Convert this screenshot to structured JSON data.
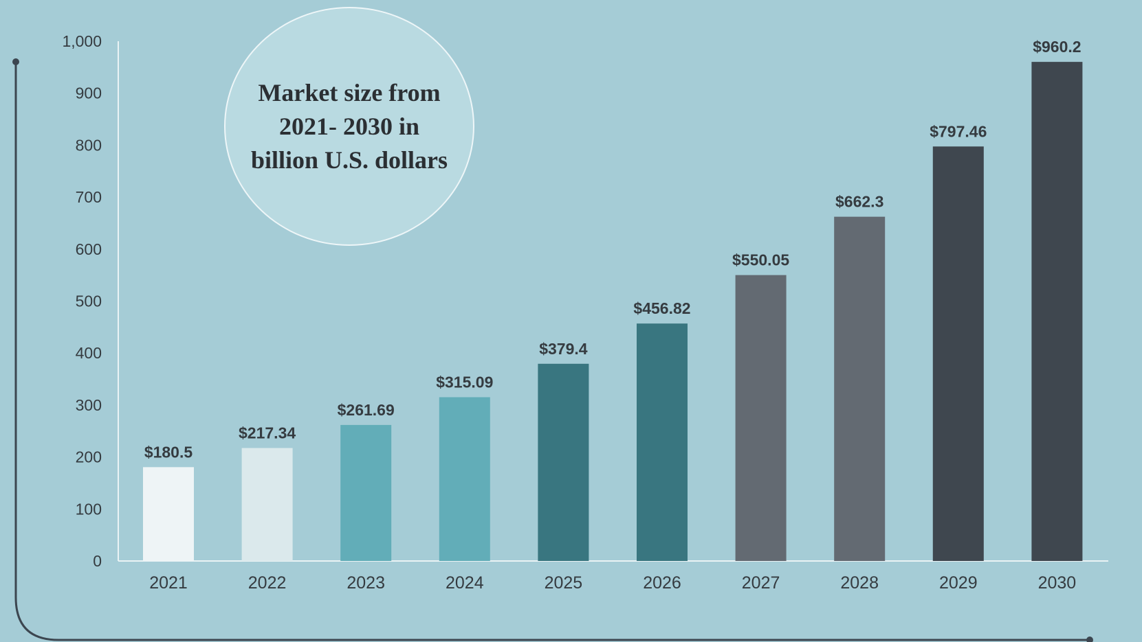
{
  "chart_data": {
    "type": "bar",
    "title": "Market size from 2021- 2030 in billion U.S. dollars",
    "xlabel": "",
    "ylabel": "",
    "categories": [
      "2021",
      "2022",
      "2023",
      "2024",
      "2025",
      "2026",
      "2027",
      "2028",
      "2029",
      "2030"
    ],
    "values": [
      180.5,
      217.34,
      261.69,
      315.09,
      379.4,
      456.82,
      550.05,
      662.3,
      797.46,
      960.2
    ],
    "data_labels": [
      "$180.5",
      "$217.34",
      "$261.69",
      "$315.09",
      "$379.4",
      "$456.82",
      "$550.05",
      "$662.3",
      "$797.46",
      "$960.2"
    ],
    "bar_colors": [
      "#eef4f6",
      "#dbe9ec",
      "#62adb8",
      "#62adb8",
      "#397680",
      "#397680",
      "#636a72",
      "#636a72",
      "#3f474f",
      "#3f474f"
    ],
    "yticks": [
      "0",
      "100",
      "200",
      "300",
      "400",
      "500",
      "600",
      "700",
      "800",
      "900",
      "1,000"
    ],
    "ylim": [
      0,
      1000
    ],
    "grid": false,
    "legend": "none"
  },
  "colors": {
    "background": "#a5ccd6",
    "circle_fill": "#b9dae1",
    "text": "#2b2f33",
    "axis": "#eaf3f5",
    "frame_line": "#3c4650"
  }
}
